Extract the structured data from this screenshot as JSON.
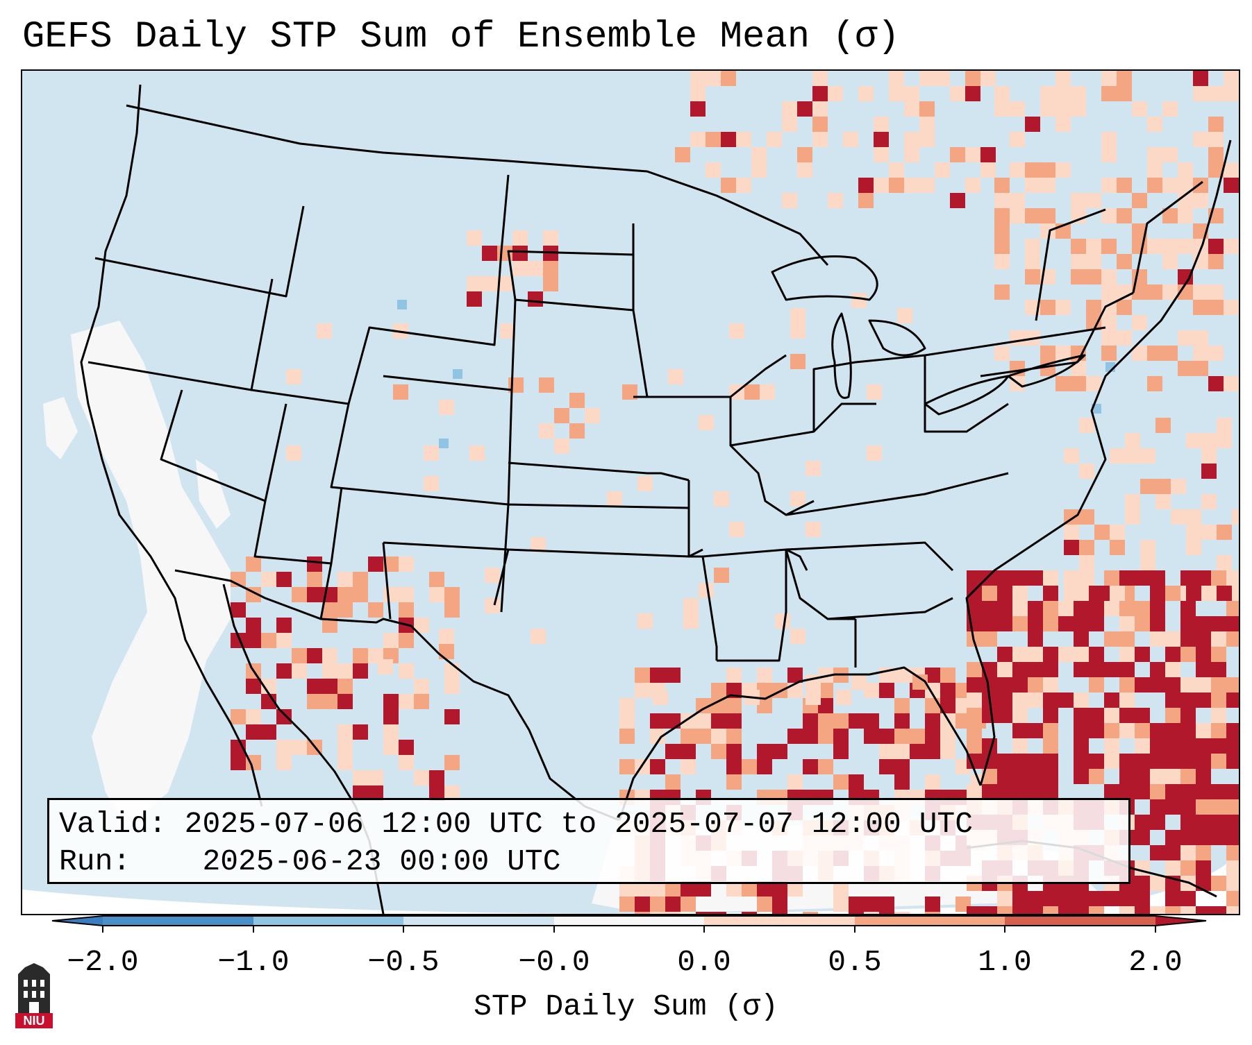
{
  "title": "GEFS Daily STP Sum of Ensemble Mean (σ)",
  "info": {
    "valid_label": "Valid:",
    "valid_range": "2025-07-06 12:00 UTC to 2025-07-07 12:00 UTC",
    "run_label": "Run:",
    "run_time": "2025-06-23 00:00 UTC"
  },
  "colorbar": {
    "label": "STP Daily Sum (σ)",
    "ticks": [
      "−2.0",
      "−1.0",
      "−0.5",
      "−0.0",
      "0.0",
      "0.5",
      "1.0",
      "2.0"
    ],
    "colors": {
      "under": "#3a7cc0",
      "bin_neg2_neg1": "#4a90c8",
      "bin_neg1_neg05": "#90c4e2",
      "bin_neg05_0": "#d1e5f0",
      "bin_0_0": "#f7f7f7",
      "bin_0_05": "#fbd9c6",
      "bin_05_1": "#f4a582",
      "bin_1_2": "#d6604d",
      "over": "#b2182b"
    }
  },
  "map": {
    "background_color": "#d1e5f0",
    "border_color": "#000000"
  },
  "logo": {
    "text": "NIU",
    "icon": "niu-logo-icon"
  }
}
